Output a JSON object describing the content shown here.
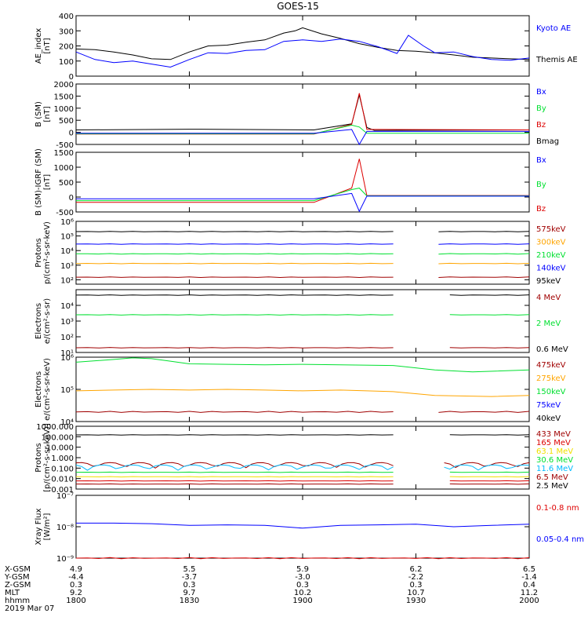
{
  "title": "GOES-15",
  "x_ticks": [
    "1800",
    "1830",
    "1900",
    "1930",
    "2000"
  ],
  "ephemeris": {
    "rows": [
      {
        "label": "X-GSM",
        "values": [
          "4.9",
          "5.5",
          "5.9",
          "6.2",
          "6.5"
        ]
      },
      {
        "label": "Y-GSM",
        "values": [
          "-4.4",
          "-3.7",
          "-3.0",
          "-2.2",
          "-1.4"
        ]
      },
      {
        "label": "Z-GSM",
        "values": [
          "0.3",
          "0.3",
          "0.3",
          "0.3",
          "0.4"
        ]
      },
      {
        "label": "MLT",
        "values": [
          "9.2",
          "9.7",
          "10.2",
          "10.7",
          "11.2"
        ]
      },
      {
        "label": "hhmm",
        "values": [
          "1800",
          "1830",
          "1900",
          "1930",
          "2000"
        ]
      }
    ],
    "date": "2019 Mar 07"
  },
  "colors": {
    "black": "#000000",
    "blue": "#0000ff",
    "green": "#00e030",
    "red": "#dd0000",
    "darkred": "#a00000",
    "orange": "#ffa500",
    "cyan": "#00bbff",
    "yellow": "#f0e000"
  },
  "chart_data": [
    {
      "type": "line",
      "panel": "ae",
      "ylabel": [
        "AE_index",
        "[nT]"
      ],
      "ylim": [
        0,
        400
      ],
      "yticks": [
        "0",
        "100",
        "200",
        "300",
        "400"
      ],
      "x_range": [
        "18:00",
        "20:00"
      ],
      "legend": [
        {
          "text": "Kyoto AE",
          "color": "#0000ff"
        },
        {
          "text": "Themis AE",
          "color": "#000000"
        }
      ],
      "series": [
        {
          "name": "Themis AE",
          "color": "#000000",
          "x": [
            0,
            5,
            10,
            15,
            20,
            25,
            30,
            35,
            40,
            45,
            50,
            55,
            58,
            60,
            65,
            70,
            75,
            80,
            85,
            90,
            95,
            100,
            105,
            110,
            115,
            120
          ],
          "y": [
            180,
            175,
            160,
            140,
            115,
            110,
            160,
            200,
            205,
            225,
            240,
            285,
            300,
            320,
            280,
            250,
            215,
            190,
            170,
            165,
            155,
            140,
            125,
            120,
            115,
            110
          ]
        },
        {
          "name": "Kyoto AE",
          "color": "#0000ff",
          "x": [
            0,
            5,
            10,
            15,
            20,
            25,
            30,
            35,
            40,
            45,
            50,
            55,
            60,
            65,
            70,
            75,
            80,
            85,
            88,
            92,
            95,
            100,
            105,
            110,
            115,
            120
          ],
          "y": [
            160,
            110,
            90,
            100,
            80,
            60,
            110,
            155,
            150,
            170,
            175,
            230,
            240,
            230,
            245,
            230,
            195,
            150,
            270,
            200,
            155,
            160,
            130,
            110,
            105,
            120
          ]
        }
      ]
    },
    {
      "type": "line",
      "panel": "bsm",
      "ylabel": [
        "B (SM)",
        "[nT]"
      ],
      "ylim": [
        -500,
        2000
      ],
      "yticks": [
        "-500",
        "0",
        "500",
        "1000",
        "1500",
        "2000"
      ],
      "legend": [
        {
          "text": "Bx",
          "color": "#0000ff"
        },
        {
          "text": "By",
          "color": "#00e030"
        },
        {
          "text": "Bz",
          "color": "#dd0000"
        },
        {
          "text": "Bmag",
          "color": "#000000"
        }
      ],
      "gap": [
        63,
        73
      ],
      "series": [
        {
          "name": "Bmag",
          "color": "#000000",
          "x": [
            0,
            30,
            63,
            73,
            75,
            77,
            79,
            120
          ],
          "y": [
            100,
            130,
            100,
            350,
            1550,
            200,
            80,
            100
          ]
        },
        {
          "name": "Bz",
          "color": "#dd0000",
          "x": [
            0,
            63,
            73,
            75,
            77,
            80,
            120
          ],
          "y": [
            -70,
            -70,
            330,
            1620,
            120,
            120,
            100
          ]
        },
        {
          "name": "By",
          "color": "#00e030",
          "x": [
            0,
            63,
            73,
            75,
            77,
            120
          ],
          "y": [
            -60,
            -60,
            300,
            220,
            -40,
            -40
          ]
        },
        {
          "name": "Bx",
          "color": "#0000ff",
          "x": [
            0,
            63,
            73,
            75,
            77,
            120
          ],
          "y": [
            -40,
            -40,
            120,
            -500,
            40,
            40
          ]
        }
      ]
    },
    {
      "type": "line",
      "panel": "bigrf",
      "ylabel": [
        "B (SM)-IGRF (SM)",
        "[nT]"
      ],
      "ylim": [
        -500,
        1500
      ],
      "yticks": [
        "-500",
        "0",
        "500",
        "1000",
        "1500"
      ],
      "legend": [
        {
          "text": "Bx",
          "color": "#0000ff"
        },
        {
          "text": "By",
          "color": "#00e030"
        },
        {
          "text": "Bz",
          "color": "#dd0000"
        }
      ],
      "gap": [
        63,
        73
      ],
      "series": [
        {
          "name": "Bz",
          "color": "#dd0000",
          "x": [
            0,
            63,
            73,
            75,
            77,
            120
          ],
          "y": [
            -180,
            -180,
            300,
            1280,
            50,
            50
          ]
        },
        {
          "name": "By",
          "color": "#00e030",
          "x": [
            0,
            63,
            73,
            75,
            77,
            120
          ],
          "y": [
            -120,
            -120,
            250,
            300,
            40,
            40
          ]
        },
        {
          "name": "Bx",
          "color": "#0000ff",
          "x": [
            0,
            63,
            73,
            75,
            77,
            120
          ],
          "y": [
            -60,
            -60,
            120,
            -480,
            30,
            30
          ]
        }
      ]
    },
    {
      "type": "line",
      "panel": "protons",
      "yscale": "log",
      "ylabel": [
        "Protons",
        "p/(cm²-s-sr-keV)"
      ],
      "ylim": [
        50,
        1000000
      ],
      "yticks": [
        "10²",
        "10³",
        "10⁴",
        "10⁵",
        "10⁶"
      ],
      "yticks_log": [
        100,
        1000,
        10000,
        100000,
        1000000
      ],
      "legend": [
        {
          "text": "575keV",
          "color": "#a00000"
        },
        {
          "text": "300keV",
          "color": "#ffa500"
        },
        {
          "text": "210keV",
          "color": "#00e030"
        },
        {
          "text": "140keV",
          "color": "#0000ff"
        },
        {
          "text": "95keV",
          "color": "#000000"
        }
      ],
      "gap": [
        84,
        95
      ],
      "series": [
        {
          "name": "95keV",
          "color": "#000000",
          "y": 200000
        },
        {
          "name": "140keV",
          "color": "#0000ff",
          "y": 28000
        },
        {
          "name": "210keV",
          "color": "#00e030",
          "y": 6000
        },
        {
          "name": "300keV",
          "color": "#ffa500",
          "y": 1300
        },
        {
          "name": "575keV",
          "color": "#a00000",
          "y": 150
        }
      ]
    },
    {
      "type": "line",
      "panel": "electrons",
      "yscale": "log",
      "ylabel": [
        "Electrons",
        "e/(cm²-s-sr)"
      ],
      "ylim": [
        10,
        100000
      ],
      "yticks": [
        "10¹",
        "10²",
        "10³",
        "10⁴"
      ],
      "yticks_log": [
        10,
        100,
        1000,
        10000
      ],
      "legend": [
        {
          "text": "4 MeV",
          "color": "#a00000"
        },
        {
          "text": "2 MeV",
          "color": "#00e030"
        },
        {
          "text": "0.6 MeV",
          "color": "#000000"
        }
      ],
      "gap": [
        84,
        97
      ],
      "series": [
        {
          "name": "0.6 MeV",
          "color": "#000000",
          "y": 45000
        },
        {
          "name": "2 MeV",
          "color": "#00e030",
          "y": 2500
        },
        {
          "name": "4 MeV",
          "color": "#a00000",
          "y": 20
        }
      ]
    },
    {
      "type": "line",
      "panel": "electrons_kev",
      "yscale": "log",
      "ylabel": [
        "Electrons",
        "e/(cm²-s-sr-keV)"
      ],
      "ylim": [
        10000,
        1000000
      ],
      "yticks": [
        "10⁴",
        "10⁵",
        "10⁶"
      ],
      "yticks_log": [
        10000,
        100000,
        1000000
      ],
      "legend": [
        {
          "text": "475keV",
          "color": "#a00000"
        },
        {
          "text": "275keV",
          "color": "#ffa500"
        },
        {
          "text": "150keV",
          "color": "#00e030"
        },
        {
          "text": "75keV",
          "color": "#0000ff"
        },
        {
          "text": "40keV",
          "color": "#000000"
        }
      ],
      "gap": [
        84,
        95
      ],
      "series": [
        {
          "name": "150keV",
          "color": "#00e030",
          "x": [
            0,
            10,
            15,
            20,
            25,
            30,
            40,
            50,
            60,
            70,
            84,
            95,
            105,
            120
          ],
          "y": [
            700000,
            850000,
            950000,
            900000,
            750000,
            620000,
            600000,
            580000,
            600000,
            580000,
            550000,
            400000,
            350000,
            400000
          ]
        },
        {
          "name": "275keV",
          "color": "#ffa500",
          "x": [
            0,
            10,
            20,
            30,
            40,
            50,
            60,
            70,
            84,
            95,
            110,
            120
          ],
          "y": [
            90000,
            95000,
            100000,
            95000,
            100000,
            95000,
            90000,
            95000,
            85000,
            65000,
            60000,
            65000
          ]
        },
        {
          "name": "475keV",
          "color": "#a00000",
          "y": 20000
        }
      ]
    },
    {
      "type": "line",
      "panel": "protons_mev",
      "yscale": "log",
      "ylabel": [
        "Protons",
        "[p/(cm²-s-sr-keV)]"
      ],
      "ylim": [
        0.001,
        1000
      ],
      "yticks": [
        "0.001",
        "0.010",
        "0.100",
        "1.000",
        "10.000",
        "100.000",
        "1000.000"
      ],
      "yticks_log": [
        0.001,
        0.01,
        0.1,
        1,
        10,
        100,
        1000
      ],
      "legend": [
        {
          "text": "433 MeV",
          "color": "#a00000"
        },
        {
          "text": "165 MeV",
          "color": "#dd0000"
        },
        {
          "text": "63.1 MeV",
          "color": "#f0e000"
        },
        {
          "text": "30.6 MeV",
          "color": "#00e030"
        },
        {
          "text": "11.6 MeV",
          "color": "#00bbff"
        },
        {
          "text": "6.5 MeV",
          "color": "#a00000"
        },
        {
          "text": "2.5 MeV",
          "color": "#000000"
        }
      ],
      "gap": [
        84,
        97
      ],
      "series": [
        {
          "name": "2.5 MeV",
          "color": "#000000",
          "y": 150
        },
        {
          "name": "6.5 MeV",
          "color": "#a00000",
          "y": 0.2,
          "noisy": true
        },
        {
          "name": "11.6 MeV",
          "color": "#00bbff",
          "y": 0.12,
          "noisy": true
        },
        {
          "name": "30.6 MeV",
          "color": "#00e030",
          "y": 0.04
        },
        {
          "name": "63.1 MeV",
          "color": "#f0e000",
          "y": 0.015
        },
        {
          "name": "165 MeV",
          "color": "#dd0000",
          "y": 0.006
        },
        {
          "name": "433 MeV",
          "color": "#a00000",
          "y": 0.003
        }
      ]
    },
    {
      "type": "line",
      "panel": "xray",
      "yscale": "log",
      "ylabel": [
        "Xray Flux",
        "[W/m²]"
      ],
      "ylim": [
        1e-09,
        1e-07
      ],
      "yticks": [
        "10⁻⁹",
        "10⁻⁸",
        "10⁻⁷"
      ],
      "yticks_log": [
        1e-09,
        1e-08,
        1e-07
      ],
      "legend": [
        {
          "text": "0.1-0.8 nm",
          "color": "#dd0000"
        },
        {
          "text": "0.05-0.4 nm",
          "color": "#0000ff"
        }
      ],
      "series": [
        {
          "name": "0.05-0.4 nm",
          "color": "#0000ff",
          "x": [
            0,
            10,
            20,
            30,
            40,
            50,
            60,
            70,
            80,
            90,
            100,
            110,
            120
          ],
          "y": [
            1.3e-08,
            1.3e-08,
            1.25e-08,
            1.1e-08,
            1.15e-08,
            1.1e-08,
            9e-09,
            1.1e-08,
            1.15e-08,
            1.2e-08,
            1e-08,
            1.1e-08,
            1.2e-08
          ]
        },
        {
          "name": "0.1-0.8 nm",
          "color": "#dd0000",
          "y": 1e-09
        }
      ]
    }
  ]
}
